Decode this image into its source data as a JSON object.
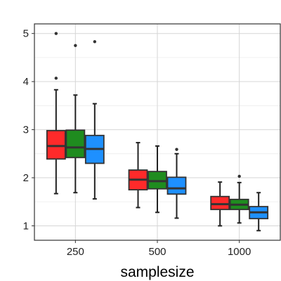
{
  "chart_data": {
    "type": "box",
    "title": "",
    "xlabel": "samplesize",
    "ylabel": "",
    "categories": [
      "250",
      "500",
      "1000"
    ],
    "y_ticks": [
      1,
      2,
      3,
      4,
      5
    ],
    "ylim": [
      0.7,
      5.2
    ],
    "grid": true,
    "legend": "none",
    "series": [
      {
        "color": "#ff2a2a",
        "boxes": [
          {
            "min": 1.67,
            "q1": 2.39,
            "median": 2.66,
            "q3": 2.98,
            "max": 3.83,
            "outliers": [
              4.07,
              5.0
            ]
          },
          {
            "min": 1.38,
            "q1": 1.75,
            "median": 1.96,
            "q3": 2.16,
            "max": 2.73,
            "outliers": []
          },
          {
            "min": 1.0,
            "q1": 1.34,
            "median": 1.45,
            "q3": 1.61,
            "max": 1.91,
            "outliers": []
          }
        ]
      },
      {
        "color": "#1f8c1f",
        "boxes": [
          {
            "min": 1.69,
            "q1": 2.42,
            "median": 2.63,
            "q3": 2.99,
            "max": 3.72,
            "outliers": [
              4.75
            ]
          },
          {
            "min": 1.28,
            "q1": 1.77,
            "median": 1.93,
            "q3": 2.13,
            "max": 2.66,
            "outliers": []
          },
          {
            "min": 1.06,
            "q1": 1.34,
            "median": 1.44,
            "q3": 1.55,
            "max": 1.9,
            "outliers": [
              2.03
            ]
          }
        ]
      },
      {
        "color": "#1e90ff",
        "boxes": [
          {
            "min": 1.56,
            "q1": 2.3,
            "median": 2.6,
            "q3": 2.88,
            "max": 3.54,
            "outliers": [
              4.83
            ]
          },
          {
            "min": 1.16,
            "q1": 1.66,
            "median": 1.78,
            "q3": 2.01,
            "max": 2.5,
            "outliers": [
              2.59
            ]
          },
          {
            "min": 0.9,
            "q1": 1.15,
            "median": 1.28,
            "q3": 1.4,
            "max": 1.69,
            "outliers": []
          }
        ]
      }
    ]
  }
}
